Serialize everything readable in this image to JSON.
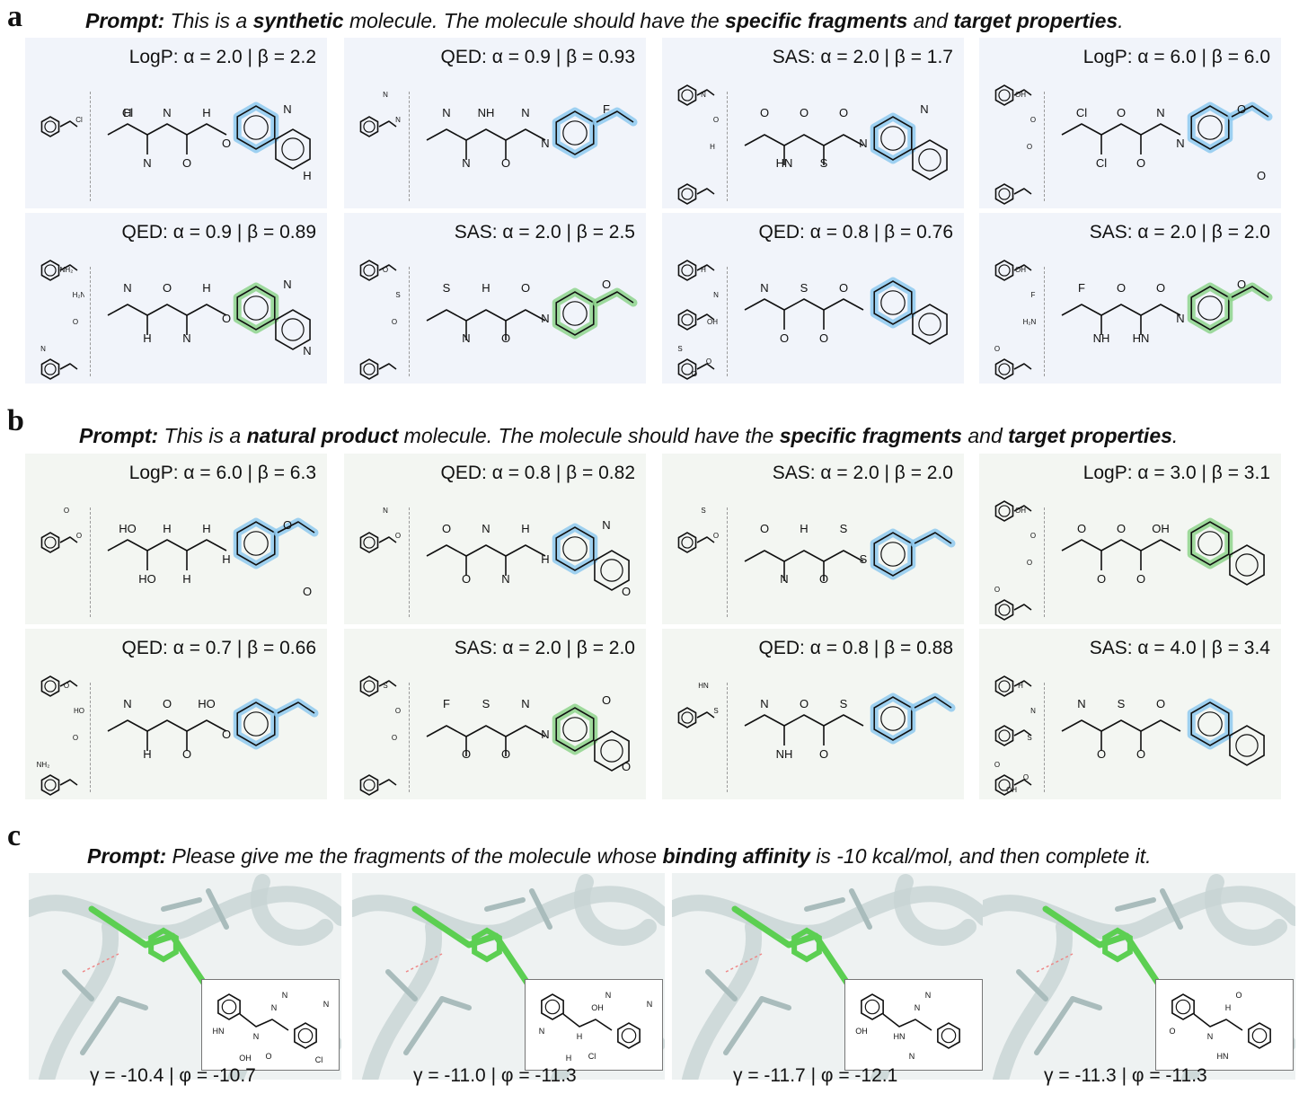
{
  "panel_a": {
    "letter": "a",
    "prompt": {
      "lead": "Prompt:",
      "t1": " This is a ",
      "b1": "synthetic",
      "t2": " molecule. The molecule should have the ",
      "b2": "specific fragments",
      "t3": " and ",
      "b3": "target properties",
      "t4": "."
    },
    "cards": [
      {
        "title": "LogP: α = 2.0 | β = 2.2",
        "frag_labels": [
          "Cl"
        ],
        "mol_labels": [
          "H",
          "N",
          "N",
          "O",
          "H",
          "O",
          "N",
          "H",
          "Cl"
        ],
        "highlight": "#8ec9ef"
      },
      {
        "title": "QED: α = 0.9 | β = 0.93",
        "frag_labels": [
          "N",
          "N"
        ],
        "mol_labels": [
          "N",
          "N",
          "NH",
          "O",
          "N",
          "N",
          "F"
        ],
        "highlight": "#8ec9ef"
      },
      {
        "title": "SAS: α = 2.0 | β = 1.7",
        "frag_labels": [
          "O",
          "N",
          "H"
        ],
        "mol_labels": [
          "O",
          "HN",
          "O",
          "S",
          "O",
          "N",
          "N"
        ],
        "highlight": "#8ec9ef"
      },
      {
        "title": "LogP: α = 6.0 | β = 6.0",
        "frag_labels": [
          "O",
          "OH",
          "O"
        ],
        "mol_labels": [
          "Cl",
          "Cl",
          "O",
          "O",
          "N",
          "N",
          "O",
          "O"
        ],
        "highlight": "#8ec9ef"
      },
      {
        "title": "QED: α = 0.9 | β = 0.89",
        "frag_labels": [
          "H₂N",
          "NH₂",
          "O",
          "N"
        ],
        "mol_labels": [
          "N",
          "H",
          "O",
          "N",
          "H",
          "O",
          "N",
          "N"
        ],
        "highlight": "#8ed48c"
      },
      {
        "title": "SAS: α = 2.0 | β = 2.5",
        "frag_labels": [
          "S",
          "O",
          "O"
        ],
        "mol_labels": [
          "S",
          "N",
          "H",
          "O",
          "O",
          "N",
          "O"
        ],
        "highlight": "#8ed48c"
      },
      {
        "title": "QED: α = 0.8 | β = 0.76",
        "frag_labels": [
          "N",
          "H",
          "OH",
          "S",
          "O",
          "O"
        ],
        "mol_labels": [
          "N",
          "O",
          "S",
          "O",
          "O"
        ],
        "highlight": "#8ec9ef"
      },
      {
        "title": "SAS: α = 2.0 | β = 2.0",
        "frag_labels": [
          "F",
          "OH",
          "H₂N",
          "O"
        ],
        "mol_labels": [
          "F",
          "NH",
          "O",
          "HN",
          "O",
          "N",
          "O"
        ],
        "highlight": "#8ed48c"
      }
    ]
  },
  "panel_b": {
    "letter": "b",
    "prompt": {
      "lead": "Prompt:",
      "t1": " This is a ",
      "b1": "natural product",
      "t2": " molecule. The molecule should have the ",
      "b2": "specific fragments",
      "t3": " and ",
      "b3": "target properties",
      "t4": "."
    },
    "cards": [
      {
        "title": "LogP: α = 6.0 | β = 6.3",
        "frag_labels": [
          "O",
          "O"
        ],
        "mol_labels": [
          "HO",
          "HO",
          "H",
          "H",
          "H",
          "H",
          "O",
          "O"
        ],
        "highlight": "#8ec9ef"
      },
      {
        "title": "QED: α = 0.8 | β = 0.82",
        "frag_labels": [
          "O",
          "N"
        ],
        "mol_labels": [
          "O",
          "O",
          "N",
          "N",
          "H",
          "H",
          "N",
          "O"
        ],
        "highlight": "#8ec9ef"
      },
      {
        "title": "SAS: α = 2.0 | β = 2.0",
        "frag_labels": [
          "O",
          "S"
        ],
        "mol_labels": [
          "O",
          "N",
          "H",
          "O",
          "S",
          "S"
        ],
        "highlight": "#8ec9ef"
      },
      {
        "title": "LogP: α = 3.0 | β = 3.1",
        "frag_labels": [
          "O",
          "OH",
          "O",
          "O"
        ],
        "mol_labels": [
          "O",
          "O",
          "O",
          "O",
          "OH"
        ],
        "highlight": "#8ed48c"
      },
      {
        "title": "QED: α = 0.7 | β = 0.66",
        "frag_labels": [
          "HO",
          "O",
          "O",
          "NH₂"
        ],
        "mol_labels": [
          "N",
          "H",
          "O",
          "O",
          "HO",
          "O"
        ],
        "highlight": "#8ec9ef"
      },
      {
        "title": "SAS: α = 2.0 | β = 2.0",
        "frag_labels": [
          "O",
          "S",
          "O"
        ],
        "mol_labels": [
          "F",
          "O",
          "S",
          "O",
          "N",
          "N",
          "O",
          "O"
        ],
        "highlight": "#8ed48c"
      },
      {
        "title": "QED: α = 0.8 | β = 0.88",
        "frag_labels": [
          "S",
          "HN"
        ],
        "mol_labels": [
          "N",
          "NH",
          "O",
          "O",
          "S"
        ],
        "highlight": "#8ec9ef"
      },
      {
        "title": "SAS: α = 4.0 | β = 3.4",
        "frag_labels": [
          "N",
          "H",
          "S",
          "O",
          "O",
          "OH"
        ],
        "mol_labels": [
          "N",
          "O",
          "S",
          "O",
          "O"
        ],
        "highlight": "#8ec9ef"
      }
    ]
  },
  "panel_c": {
    "letter": "c",
    "prompt": {
      "lead": "Prompt:",
      "t1": " Please give me the fragments of the molecule whose ",
      "b1": "binding affinity",
      "t2": " is -10 kcal/mol, and then complete it."
    },
    "docks": [
      {
        "caption": "γ = -10.4 | φ = -10.7",
        "inset_labels": [
          "HN",
          "N",
          "N",
          "O",
          "N",
          "N",
          "OH",
          "Cl"
        ]
      },
      {
        "caption": "γ = -11.0 | φ = -11.3",
        "inset_labels": [
          "N",
          "H",
          "OH",
          "Cl",
          "N",
          "N",
          "H"
        ]
      },
      {
        "caption": "γ = -11.7 | φ = -12.1",
        "inset_labels": [
          "OH",
          "HN",
          "N",
          "N",
          "N"
        ]
      },
      {
        "caption": "γ = -11.3 | φ = -11.3",
        "inset_labels": [
          "O",
          "N",
          "H",
          "HN",
          "O"
        ]
      }
    ]
  },
  "colors": {
    "blue_highlight": "#8ec9ef",
    "green_highlight": "#8ed48c",
    "tan_highlight": "#c8bcab",
    "card_a_bg": "#f1f4fa",
    "card_b_bg": "#f3f6f2"
  }
}
